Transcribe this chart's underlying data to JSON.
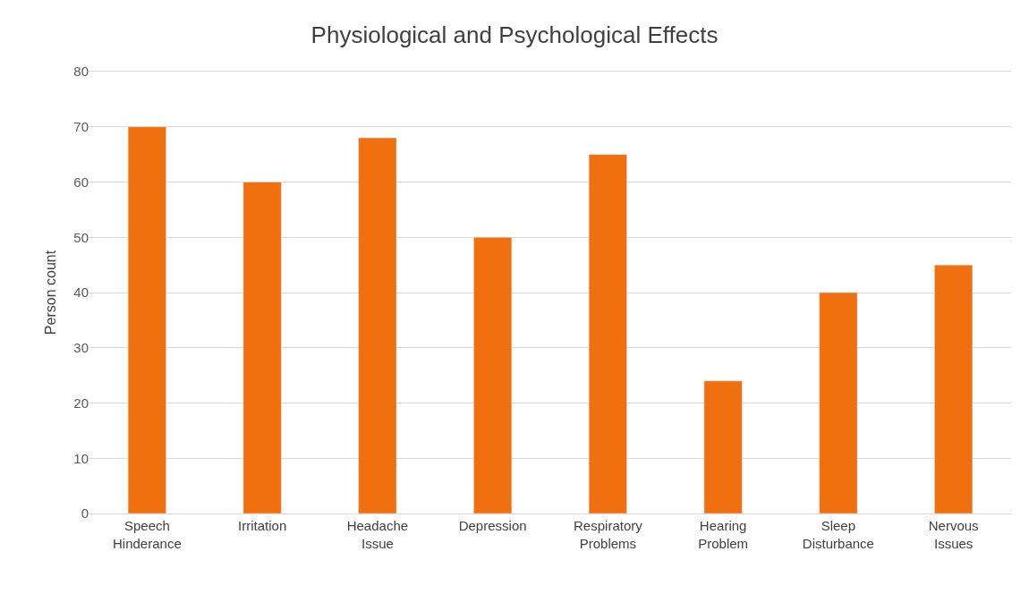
{
  "chart_data": {
    "type": "bar",
    "title": "Physiological and Psychological Effects",
    "ylabel": "Person count",
    "categories": [
      "Speech Hinderance",
      "Irritation",
      "Headache Issue",
      "Depression",
      "Respiratory Problems",
      "Hearing Problem",
      "Sleep Disturbance",
      "Nervous Issues"
    ],
    "values": [
      70,
      60,
      68,
      50,
      65,
      24,
      40,
      45
    ],
    "color": "#f07010",
    "ylim": [
      0,
      80
    ],
    "yticks": [
      0,
      10,
      20,
      30,
      40,
      50,
      60,
      70,
      80
    ],
    "grid": "y"
  }
}
